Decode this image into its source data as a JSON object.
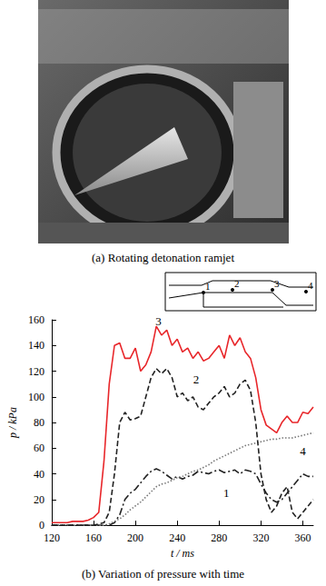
{
  "photo": {
    "caption": "(a) Rotating detonation ramjet"
  },
  "chart_data": {
    "type": "line",
    "caption": "(b) Variation of pressure with time",
    "x_label": "t / ms",
    "y_label": "p / kPa",
    "xlim": [
      120,
      370
    ],
    "xticks": [
      120,
      160,
      200,
      240,
      280,
      320,
      360
    ],
    "ylim": [
      0,
      160
    ],
    "yticks": [
      0,
      20,
      40,
      60,
      80,
      100,
      120,
      140,
      160
    ],
    "grid": false,
    "x": [
      120,
      125,
      130,
      135,
      140,
      145,
      150,
      155,
      160,
      165,
      170,
      175,
      180,
      185,
      190,
      195,
      200,
      205,
      210,
      215,
      220,
      225,
      230,
      235,
      240,
      245,
      250,
      255,
      260,
      265,
      270,
      275,
      280,
      285,
      290,
      295,
      300,
      305,
      310,
      315,
      320,
      325,
      330,
      335,
      340,
      345,
      350,
      355,
      360,
      365,
      370
    ],
    "series": [
      {
        "name": "3",
        "color": "#e8262a",
        "line_style": "solid",
        "values": [
          2,
          2,
          2,
          2,
          3,
          3,
          3,
          4,
          6,
          10,
          50,
          110,
          140,
          142,
          130,
          130,
          138,
          120,
          125,
          135,
          155,
          148,
          152,
          140,
          145,
          135,
          138,
          130,
          135,
          128,
          130,
          135,
          140,
          130,
          148,
          140,
          146,
          135,
          130,
          115,
          90,
          78,
          75,
          72,
          80,
          85,
          80,
          80,
          88,
          87,
          92
        ]
      },
      {
        "name": "2",
        "color": "#222222",
        "line_style": "dashed",
        "values": [
          0,
          0,
          0,
          0,
          0,
          0,
          0,
          0,
          0,
          1,
          2,
          10,
          40,
          80,
          88,
          82,
          83,
          85,
          100,
          115,
          122,
          118,
          122,
          115,
          100,
          103,
          97,
          100,
          92,
          90,
          95,
          100,
          103,
          108,
          100,
          103,
          110,
          113,
          105,
          80,
          40,
          20,
          10,
          15,
          25,
          30,
          10,
          5,
          10,
          15,
          20
        ]
      },
      {
        "name": "4",
        "color": "#777777",
        "line_style": "dotted",
        "values": [
          0,
          0,
          0,
          0,
          0,
          0,
          0,
          0,
          0,
          0,
          0,
          1,
          3,
          5,
          8,
          12,
          15,
          18,
          22,
          26,
          30,
          32,
          33,
          35,
          37,
          38,
          40,
          42,
          43,
          45,
          47,
          50,
          52,
          54,
          56,
          58,
          60,
          62,
          63,
          64,
          65,
          66,
          67,
          67,
          68,
          68,
          68,
          69,
          70,
          71,
          72
        ]
      },
      {
        "name": "1",
        "color": "#222222",
        "line_style": "dashdot",
        "values": [
          0,
          0,
          0,
          0,
          0,
          0,
          0,
          0,
          0,
          0,
          0,
          0,
          2,
          8,
          20,
          25,
          28,
          33,
          38,
          42,
          44,
          42,
          39,
          36,
          38,
          36,
          38,
          39,
          42,
          41,
          40,
          42,
          43,
          41,
          42,
          43,
          40,
          43,
          42,
          40,
          32,
          25,
          20,
          18,
          20,
          25,
          30,
          35,
          40,
          38,
          38
        ]
      }
    ],
    "annotations": [
      {
        "text": "3",
        "x": 222,
        "y": 159
      },
      {
        "text": "2",
        "x": 258,
        "y": 114
      },
      {
        "text": "4",
        "x": 360,
        "y": 58
      },
      {
        "text": "1",
        "x": 287,
        "y": 25
      }
    ],
    "inset_labels": [
      "1",
      "2",
      "3",
      "4"
    ]
  }
}
